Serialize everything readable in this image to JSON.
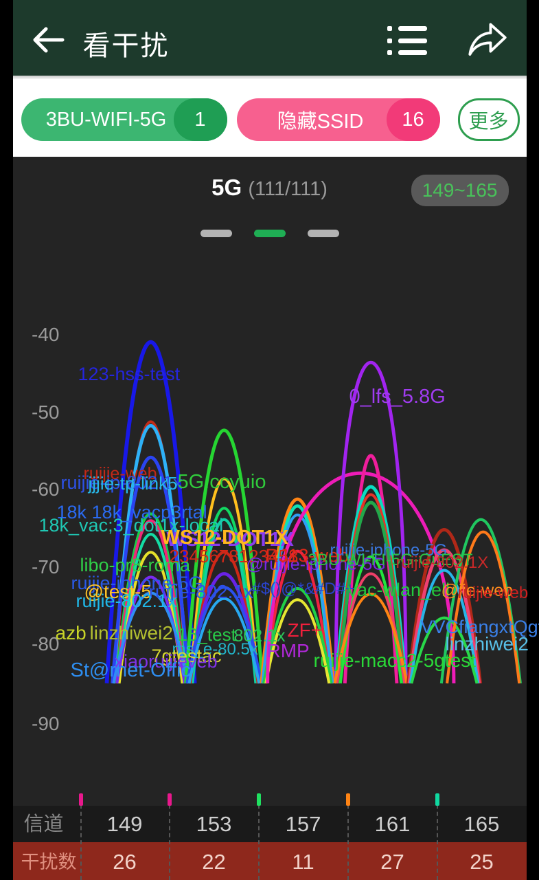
{
  "header": {
    "title": "看干扰"
  },
  "filters": {
    "pill1": {
      "label": "3BU-WIFI-5G",
      "count": "1",
      "color": "#3cb671",
      "count_color": "#1f9e54"
    },
    "pill2": {
      "label": "隐藏SSID",
      "count": "16",
      "color": "#f7608f",
      "count_color": "#f23a78"
    },
    "more_label": "更多",
    "more_color": "#2e9e4f"
  },
  "chart_header": {
    "band": "5G",
    "counter": "(111/111)",
    "range_badge": "149~165",
    "badge_text_color": "#49c25a"
  },
  "carousel": {
    "count": 3,
    "active": 1,
    "active_color": "#1fae54",
    "inactive_color": "#b3b3b3"
  },
  "chart_data": {
    "type": "area",
    "title": "5G (111/111)",
    "x_range_label": "149~165",
    "ylim": [
      -99,
      -38
    ],
    "baseline_y": 1160,
    "yticks": [
      [
        "-40",
        487
      ],
      [
        "-50",
        600
      ],
      [
        "-60",
        712
      ],
      [
        "-70",
        825
      ],
      [
        "-80",
        937
      ],
      [
        "-90",
        1053
      ]
    ],
    "channels": {
      "label": "信道",
      "values": [
        "149",
        "153",
        "157",
        "161",
        "165"
      ],
      "centers": [
        163,
        293,
        423,
        553,
        683
      ]
    },
    "interference": {
      "label": "干扰数",
      "values": [
        "26",
        "22",
        "11",
        "27",
        "25"
      ]
    },
    "boundaries": [
      [
        99,
        "#e8188c"
      ],
      [
        228,
        "#e8188c"
      ],
      [
        358,
        "#20e060"
      ],
      [
        488,
        "#ff8414"
      ],
      [
        618,
        "#10d8a0"
      ]
    ],
    "arcs": [
      [
        163,
        78,
        556,
        "#1818e8",
        7,
        0
      ],
      [
        163,
        64,
        697,
        "#c22c18",
        5,
        0
      ],
      [
        163,
        66,
        704,
        "#2eb2f8",
        6,
        0
      ],
      [
        163,
        68,
        760,
        "#2a44f2",
        6,
        0
      ],
      [
        163,
        62,
        860,
        "#16d048",
        5,
        0
      ],
      [
        163,
        60,
        872,
        "#f02878",
        5,
        0
      ],
      [
        163,
        58,
        896,
        "#14dca4",
        5,
        0
      ],
      [
        163,
        56,
        928,
        "#e6e02a",
        5,
        0
      ],
      [
        163,
        60,
        972,
        "#7a2af0",
        5,
        0
      ],
      [
        163,
        66,
        1000,
        "#2f8cf5",
        5,
        0
      ],
      [
        293,
        68,
        712,
        "#26d632",
        6,
        0
      ],
      [
        293,
        60,
        798,
        "#ffc01e",
        5,
        0
      ],
      [
        293,
        58,
        850,
        "#12d862",
        5,
        0
      ],
      [
        293,
        56,
        870,
        "#0fd0a0",
        5,
        0
      ],
      [
        293,
        60,
        928,
        "#cc2818",
        5,
        0
      ],
      [
        293,
        64,
        966,
        "#6a22e6",
        6,
        0
      ],
      [
        293,
        66,
        990,
        "#2a50ee",
        5,
        0
      ],
      [
        293,
        62,
        1010,
        "#28a8f0",
        5,
        0
      ],
      [
        423,
        64,
        834,
        "#ff8414",
        6,
        0
      ],
      [
        423,
        60,
        846,
        "#10e0b4",
        6,
        0
      ],
      [
        423,
        62,
        862,
        "#2e9ef4",
        5,
        0
      ],
      [
        423,
        58,
        926,
        "#f02440",
        5,
        0
      ],
      [
        423,
        60,
        992,
        "#20d046",
        5,
        0
      ],
      [
        423,
        56,
        1012,
        "#e6e632",
        5,
        0
      ],
      [
        535,
        165,
        788,
        "#ee1cb8",
        6,
        1
      ],
      [
        553,
        62,
        592,
        "#a224f0",
        6,
        1
      ],
      [
        553,
        46,
        757,
        "#f01e9c",
        6,
        0
      ],
      [
        553,
        62,
        812,
        "#08dcc0",
        6,
        0
      ],
      [
        553,
        60,
        826,
        "#e63228",
        5,
        0
      ],
      [
        553,
        58,
        840,
        "#22a84a",
        6,
        0
      ],
      [
        553,
        54,
        936,
        "#22e63c",
        5,
        0
      ],
      [
        553,
        60,
        966,
        "#f04068",
        5,
        0
      ],
      [
        553,
        64,
        1002,
        "#ff8414",
        5,
        0
      ],
      [
        683,
        64,
        888,
        "#b02818",
        6,
        0
      ],
      [
        683,
        62,
        924,
        "#f04070",
        6,
        0
      ],
      [
        683,
        60,
        960,
        "#28b4e8",
        5,
        0
      ],
      [
        683,
        58,
        1044,
        "#28d84a",
        5,
        0
      ],
      [
        748,
        70,
        870,
        "#20c860",
        5,
        0
      ],
      [
        752,
        64,
        892,
        "#ff7a1a",
        5,
        0
      ]
    ],
    "labels": [
      [
        "123-hss-test",
        "#2525dd",
        95,
        530,
        27,
        0
      ],
      [
        "0_lfs_5.8G",
        "#a03cf0",
        490,
        562,
        29,
        0
      ],
      [
        "ruijie-web",
        "#c22818",
        103,
        676,
        25,
        0
      ],
      [
        "ruijie-jp-802.1x",
        "#2d52e8",
        70,
        688,
        27,
        0
      ],
      [
        "jjjie-tp-link5",
        "#28b8e8",
        110,
        690,
        26,
        0
      ],
      [
        "5G.ccyuio",
        "#30cc3c",
        240,
        686,
        29,
        0
      ],
      [
        "18k 18k_vacp3rtal",
        "#2a6af0",
        64,
        731,
        27,
        0
      ],
      [
        "18k_vac;3_dot1x-local",
        "#1fc8b4",
        38,
        750,
        27,
        0
      ],
      [
        "WS12-DOT1X",
        "#8a3cf0",
        224,
        770,
        29,
        1
      ],
      [
        "WS12-DOT1X",
        "#ffb81e",
        216,
        767,
        29,
        1
      ],
      [
        "2345678123458",
        "#d42818",
        228,
        796,
        26,
        0
      ],
      [
        "libo-pr8-roma",
        "#2fd048",
        98,
        808,
        27,
        0
      ],
      [
        "ruijie-iphone-5G",
        "#2a5ae8",
        85,
        834,
        27,
        0
      ],
      [
        "@ruijie-iphone-5G",
        "#7a28e8",
        340,
        808,
        25,
        0
      ],
      [
        "RJ13-web",
        "#e02818",
        368,
        794,
        27,
        0
      ],
      [
        "ruijie-iphone-5G",
        "#3a78e0",
        462,
        788,
        24,
        0
      ],
      [
        "3BU-WI-FI-5G-GuEST",
        "#2cc244",
        430,
        802,
        24,
        0
      ],
      [
        "@test-5",
        "#ffc428",
        104,
        846,
        28,
        0
      ],
      [
        "ruijie-802.1x",
        "#2d52e8",
        198,
        846,
        28,
        0
      ],
      [
        "ruijie-802.1x",
        "#20b8e8",
        92,
        860,
        27,
        0
      ],
      [
        "#$()@*&#D#+",
        "#2a44cc",
        348,
        844,
        24,
        0
      ],
      [
        "vac-wlan_ell",
        "#22c83c",
        488,
        844,
        27,
        0
      ],
      [
        "ruijie-802.1X",
        "#c82828",
        558,
        806,
        24,
        0
      ],
      [
        "@jie-web",
        "#ff8c1e",
        624,
        846,
        25,
        0
      ],
      [
        "ruijie-web",
        "#d02020",
        648,
        850,
        24,
        0
      ],
      [
        "ZF+",
        "#f0203c",
        400,
        902,
        28,
        0
      ],
      [
        "azb",
        "#c8d428",
        62,
        906,
        28,
        0
      ],
      [
        "linzhiwei2",
        "#b4c030",
        112,
        906,
        28,
        0
      ],
      [
        "16_test",
        "#28c848",
        240,
        910,
        26,
        0
      ],
      [
        "802.1x",
        "#2cc85a",
        322,
        912,
        25,
        0
      ],
      [
        "ms_e-80.5x",
        "#22b4c8",
        232,
        932,
        24,
        0
      ],
      [
        "7gtestac",
        "#d8d830",
        202,
        940,
        27,
        0
      ],
      [
        "xiaoruijieveb",
        "#8034e8",
        148,
        948,
        27,
        0
      ],
      [
        "St@rnet-Offic",
        "#2e8ef0",
        84,
        960,
        29,
        0
      ],
      [
        "RMP",
        "#b028d8",
        370,
        932,
        28,
        0
      ],
      [
        "ruijie-macc2-5gtest",
        "#2ad838",
        438,
        946,
        28,
        0
      ],
      [
        "VVCfiangxtQgt",
        "#3a80e8",
        594,
        898,
        27,
        0
      ],
      [
        "linzhiwei2",
        "#58c0e8",
        630,
        922,
        28,
        0
      ]
    ]
  }
}
